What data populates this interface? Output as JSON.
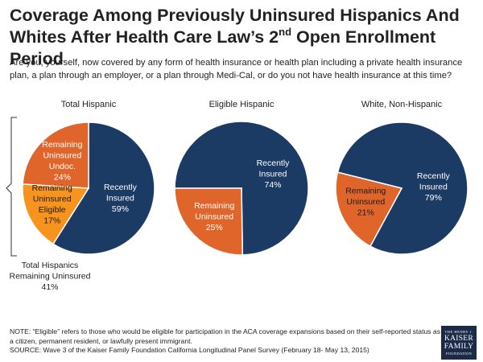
{
  "header": {
    "title_part1": "Coverage Among Previously Uninsured Hispanics And Whites After Health Care Law’s 2",
    "title_sup": "nd",
    "title_part2": " Open Enrollment Period",
    "question": "Are you, yourself, now covered by any form of health insurance or health plan including a private health insurance plan, a plan through an employer, or a plan through Medi-Cal, or do you not have health insurance at this time?"
  },
  "colors": {
    "navy": "#1b3a64",
    "orange_dark": "#e0652b",
    "orange_light": "#f7941d",
    "border": "#ffffff",
    "bracket": "#333333"
  },
  "chart_data": [
    {
      "type": "pie",
      "title": "Total Hispanic",
      "slices": [
        {
          "label": [
            "Recently",
            "Insured"
          ],
          "value": 59,
          "value_label": "59%",
          "color": "#1b3a64",
          "text_color": "#ffffff"
        },
        {
          "label": [
            "Remaining",
            "Uninsured",
            "Eligible"
          ],
          "value": 17,
          "value_label": "17%",
          "color": "#f7941d",
          "text_color": "#1a1a1a"
        },
        {
          "label": [
            "Remaining",
            "Uninsured",
            "Undoc."
          ],
          "value": 24,
          "value_label": "24%",
          "color": "#e0652b",
          "text_color": "#ffffff"
        }
      ],
      "bracket_label": [
        "Total Hispanics",
        "Remaining Uninsured",
        "41%"
      ]
    },
    {
      "type": "pie",
      "title": "Eligible Hispanic",
      "slices": [
        {
          "label": [
            "Recently",
            "Insured"
          ],
          "value": 74,
          "value_label": "74%",
          "color": "#1b3a64",
          "text_color": "#ffffff"
        },
        {
          "label": [
            "Remaining",
            "Uninsured"
          ],
          "value": 25,
          "value_label": "25%",
          "color": "#e0652b",
          "text_color": "#ffffff"
        }
      ]
    },
    {
      "type": "pie",
      "title": "White, Non-Hispanic",
      "slices": [
        {
          "label": [
            "Recently",
            "Insured"
          ],
          "value": 79,
          "value_label": "79%",
          "color": "#1b3a64",
          "text_color": "#ffffff"
        },
        {
          "label": [
            "Remaining",
            "Uninsured"
          ],
          "value": 21,
          "value_label": "21%",
          "color": "#e0652b",
          "text_color": "#1a1a1a"
        }
      ]
    }
  ],
  "footer": {
    "note": "NOTE: “Eligible” refers to those who would be eligible for participation in the ACA coverage expansions based on their self-reported status as a citizen, permanent resident, or lawfully present immigrant.",
    "source": "SOURCE: Wave 3 of the Kaiser Family Foundation California Longitudinal Panel Survey (February 18- May 13, 2015)"
  },
  "logo": {
    "line1": "THE HENRY J.",
    "line2": "KAISER",
    "line3": "FAMILY",
    "line4": "FOUNDATION"
  }
}
